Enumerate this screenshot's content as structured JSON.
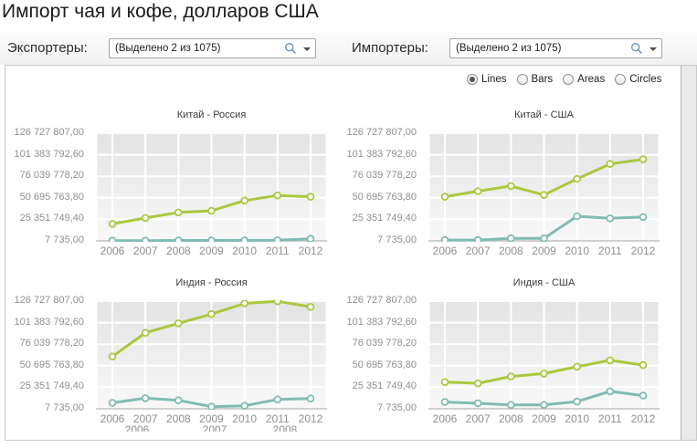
{
  "page": {
    "title": "Импорт чая и кофе, долларов США"
  },
  "toolbar": {
    "exporters": {
      "label": "Экспортеры:",
      "value": "(Выделено 2 из 1075)"
    },
    "importers": {
      "label": "Импортеры:",
      "value": "(Выделено 2 из 1075)"
    }
  },
  "chart_type": {
    "options": [
      "Lines",
      "Bars",
      "Areas",
      "Circles"
    ],
    "selected": "Lines"
  },
  "colors": {
    "series_green": "#abc83e",
    "series_teal": "#81bbb3",
    "plot_bg_top": "#e3e3e3",
    "plot_bg_bottom": "#f8f8f8",
    "grid_line": "#ffffff",
    "axis_line": "#c2c2c2",
    "axis_text": "#8f8f8f"
  },
  "y_axis": {
    "tick_labels": [
      "126 727 807,00",
      "101 383 792,60",
      "76 039 778,20",
      "50 695 763,80",
      "25 351 749,40",
      "7 735,00"
    ],
    "tick_values": [
      126727807.0,
      101383792.6,
      76039778.2,
      50695763.8,
      25351749.4,
      7735.0
    ]
  },
  "x_axis": {
    "years": [
      "2006",
      "2007",
      "2008",
      "2009",
      "2010",
      "2011",
      "2012"
    ]
  },
  "chart_data": [
    {
      "type": "line",
      "title": "Китай - Россия",
      "categories": [
        "2006",
        "2007",
        "2008",
        "2009",
        "2010",
        "2011",
        "2012"
      ],
      "ylim": [
        7735,
        126727807
      ],
      "series": [
        {
          "name": "green",
          "values": [
            20000000,
            27000000,
            33500000,
            35500000,
            47500000,
            53500000,
            52000000
          ]
        },
        {
          "name": "teal",
          "values": [
            300000,
            300000,
            500000,
            500000,
            600000,
            800000,
            2500000
          ]
        }
      ]
    },
    {
      "type": "line",
      "title": "Китай - США",
      "categories": [
        "2006",
        "2007",
        "2008",
        "2009",
        "2010",
        "2011",
        "2012"
      ],
      "ylim": [
        7735,
        126727807
      ],
      "series": [
        {
          "name": "green",
          "values": [
            52000000,
            58500000,
            64500000,
            54000000,
            73000000,
            90500000,
            96000000
          ]
        },
        {
          "name": "teal",
          "values": [
            1000000,
            1000000,
            3000000,
            3000000,
            29000000,
            26500000,
            28000000
          ]
        }
      ]
    },
    {
      "type": "line",
      "title": "Индия - Россия",
      "categories": [
        "2006",
        "2007",
        "2008",
        "2009",
        "2010",
        "2011",
        "2012"
      ],
      "ylim": [
        7735,
        126727807
      ],
      "x_ghost": [
        "2006",
        "2007",
        "2008"
      ],
      "series": [
        {
          "name": "green",
          "values": [
            61500000,
            89500000,
            100500000,
            111500000,
            124000000,
            126500000,
            120000000
          ]
        },
        {
          "name": "teal",
          "values": [
            7000000,
            12500000,
            10000000,
            2500000,
            3500000,
            11000000,
            12000000
          ]
        }
      ]
    },
    {
      "type": "line",
      "title": "Индия - США",
      "categories": [
        "2006",
        "2007",
        "2008",
        "2009",
        "2010",
        "2011",
        "2012"
      ],
      "ylim": [
        7735,
        126727807
      ],
      "series": [
        {
          "name": "green",
          "values": [
            31500000,
            30000000,
            38000000,
            41500000,
            49500000,
            57000000,
            51500000
          ]
        },
        {
          "name": "teal",
          "values": [
            8000000,
            6500000,
            4500000,
            4500000,
            8500000,
            20500000,
            15500000
          ]
        }
      ]
    }
  ]
}
